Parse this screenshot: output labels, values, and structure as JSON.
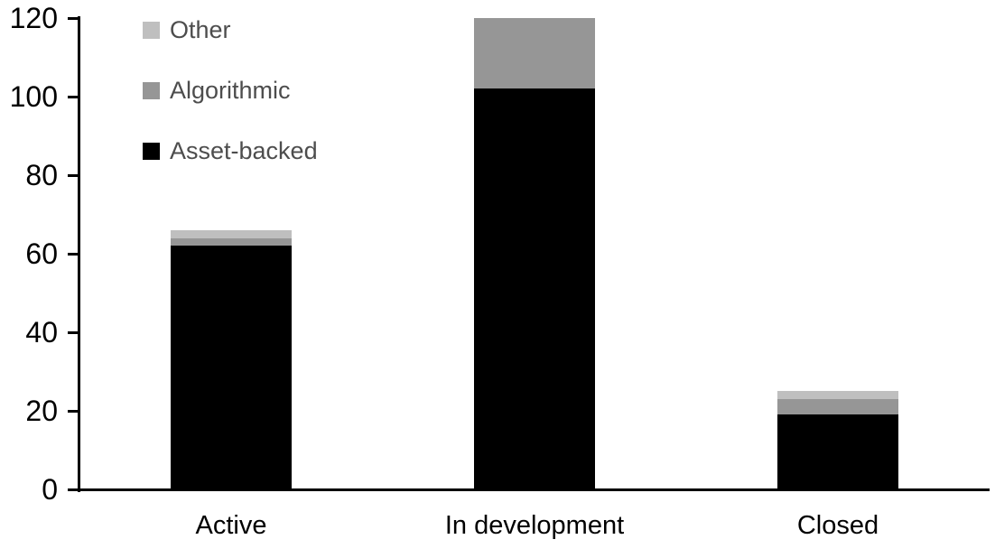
{
  "chart_data": {
    "type": "bar",
    "stacked": true,
    "title": "",
    "xlabel": "",
    "ylabel": "",
    "categories": [
      "Active",
      "In development",
      "Closed"
    ],
    "series": [
      {
        "name": "Asset-backed",
        "color": "#000000",
        "values": [
          62,
          102,
          19
        ]
      },
      {
        "name": "Algorithmic",
        "color": "#969696",
        "values": [
          2,
          18,
          4
        ]
      },
      {
        "name": "Other",
        "color": "#BFBFBF",
        "values": [
          2,
          0,
          2
        ]
      }
    ],
    "ylim": [
      0,
      120
    ],
    "y_ticks": [
      0,
      20,
      40,
      60,
      80,
      100,
      120
    ],
    "grid": false,
    "legend_position": "top-left",
    "legend_order": [
      "Other",
      "Algorithmic",
      "Asset-backed"
    ]
  },
  "colors": {
    "background": "#FFFFFF",
    "axis": "#000000",
    "axis_text": "#000000",
    "legend_text": "#4D4D4D"
  }
}
